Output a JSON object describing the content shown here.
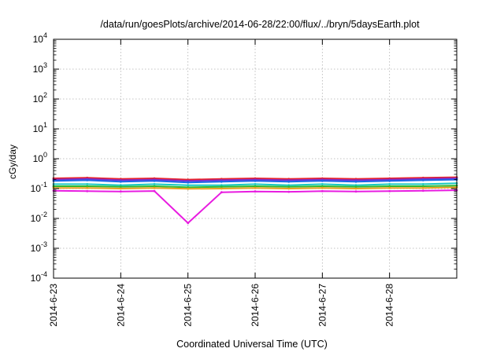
{
  "chart_data": {
    "type": "line",
    "title": "/data/run/goesPlots/archive/2014-06-28/22:00/flux/../bryn/5daysEarth.plot",
    "xlabel": "Coordinated Universal Time (UTC)",
    "ylabel": "cGy/day",
    "yscale": "log",
    "ylim": [
      0.0001,
      10000
    ],
    "xlim": [
      "2014-06-23",
      "2014-06-29"
    ],
    "grid": true,
    "legend": "none",
    "x_ticks": [
      "2014-6-23",
      "2014-6-24",
      "2014-6-25",
      "2014-6-26",
      "2014-6-27",
      "2014-6-28"
    ],
    "y_ticks": [
      {
        "base": "10",
        "exp": "-4",
        "value": 0.0001
      },
      {
        "base": "10",
        "exp": "-3",
        "value": 0.001
      },
      {
        "base": "10",
        "exp": "-2",
        "value": 0.01
      },
      {
        "base": "10",
        "exp": "-1",
        "value": 0.1
      },
      {
        "base": "10",
        "exp": "0",
        "value": 1
      },
      {
        "base": "10",
        "exp": "1",
        "value": 10
      },
      {
        "base": "10",
        "exp": "2",
        "value": 100
      },
      {
        "base": "10",
        "exp": "3",
        "value": 1000
      },
      {
        "base": "10",
        "exp": "4",
        "value": 10000
      }
    ],
    "x": [
      "2014-06-23",
      "2014-06-23T12:00",
      "2014-06-24",
      "2014-06-24T12:00",
      "2014-06-25",
      "2014-06-25T12:00",
      "2014-06-26",
      "2014-06-26T12:00",
      "2014-06-27",
      "2014-06-27T12:00",
      "2014-06-28",
      "2014-06-28T12:00",
      "2014-06-29"
    ],
    "series": [
      {
        "color": "#e8202a",
        "values": [
          0.22,
          0.23,
          0.21,
          0.22,
          0.2,
          0.21,
          0.22,
          0.21,
          0.22,
          0.21,
          0.22,
          0.23,
          0.24
        ]
      },
      {
        "color": "#7a2fd0",
        "values": [
          0.2,
          0.21,
          0.19,
          0.2,
          0.18,
          0.19,
          0.2,
          0.19,
          0.2,
          0.19,
          0.2,
          0.21,
          0.22
        ]
      },
      {
        "color": "#1a66e8",
        "values": [
          0.18,
          0.19,
          0.17,
          0.18,
          0.16,
          0.17,
          0.18,
          0.17,
          0.18,
          0.17,
          0.18,
          0.19,
          0.2
        ]
      },
      {
        "color": "#18c9c0",
        "values": [
          0.14,
          0.14,
          0.13,
          0.14,
          0.13,
          0.13,
          0.14,
          0.13,
          0.14,
          0.13,
          0.14,
          0.14,
          0.15
        ]
      },
      {
        "color": "#2fb82f",
        "values": [
          0.12,
          0.12,
          0.115,
          0.12,
          0.11,
          0.115,
          0.12,
          0.115,
          0.12,
          0.115,
          0.12,
          0.12,
          0.125
        ]
      },
      {
        "color": "#e8a020",
        "values": [
          0.105,
          0.105,
          0.1,
          0.105,
          0.098,
          0.1,
          0.105,
          0.1,
          0.105,
          0.1,
          0.105,
          0.105,
          0.11
        ]
      },
      {
        "color": "#e81ce0",
        "values": [
          0.085,
          0.082,
          0.08,
          0.083,
          0.007,
          0.075,
          0.08,
          0.078,
          0.082,
          0.08,
          0.082,
          0.085,
          0.088
        ]
      }
    ]
  }
}
